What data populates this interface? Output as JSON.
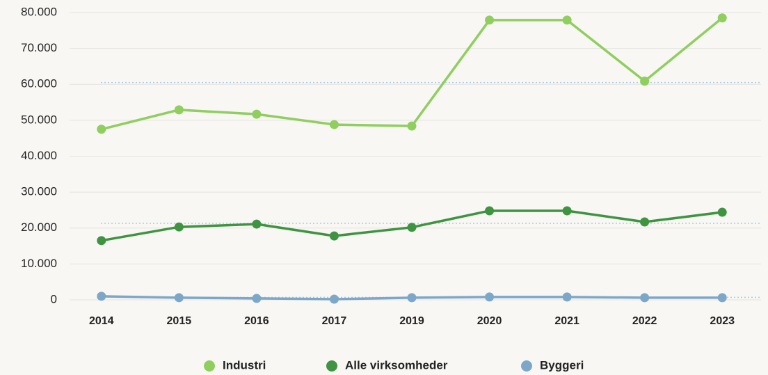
{
  "chart_data": {
    "type": "line",
    "categories": [
      "2014",
      "2015",
      "2016",
      "2017",
      "2019",
      "2020",
      "2021",
      "2022",
      "2023"
    ],
    "series": [
      {
        "name": "Industri",
        "color": "#8fce5f",
        "values": [
          47500,
          52900,
          51700,
          48800,
          48400,
          77900,
          77900,
          60900,
          78500
        ]
      },
      {
        "name": "Alle virksomheder",
        "color": "#3f9442",
        "values": [
          16500,
          20300,
          21100,
          17800,
          20200,
          24800,
          24800,
          21700,
          24400
        ]
      },
      {
        "name": "Byggeri",
        "color": "#7da7c9",
        "values": [
          1000,
          600,
          400,
          200,
          600,
          800,
          800,
          600,
          600
        ]
      }
    ],
    "reference_lines": {
      "color": "#a9cbe8",
      "values": [
        60500,
        21300,
        700
      ]
    },
    "ylim": [
      0,
      80000
    ],
    "yticks": [
      0,
      {
        "value": 10000,
        "label": "10.000"
      },
      {
        "value": 20000,
        "label": "20.000"
      },
      {
        "value": 30000,
        "label": "30.000"
      },
      {
        "value": 40000,
        "label": "40.000"
      },
      {
        "value": 50000,
        "label": "50.000"
      },
      {
        "value": 60000,
        "label": "60.000"
      },
      {
        "value": 70000,
        "label": "70.000"
      },
      {
        "value": 80000,
        "label": "80.000"
      }
    ],
    "grid": true,
    "legend": "bottom"
  }
}
